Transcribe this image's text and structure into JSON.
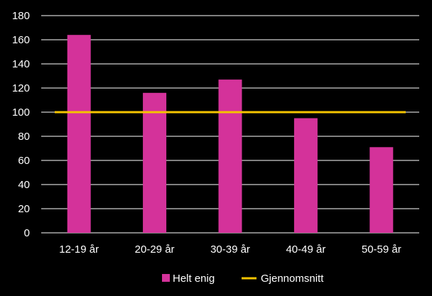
{
  "chart_data": {
    "type": "bar",
    "categories": [
      "12-19 år",
      "20-29 år",
      "30-39 år",
      "40-49 år",
      "50-59 år"
    ],
    "series": [
      {
        "name": "Helt enig",
        "type": "bar",
        "values": [
          164,
          116,
          127,
          95,
          71
        ],
        "color": "#d4329a"
      },
      {
        "name": "Gjennomsnitt",
        "type": "line",
        "values": [
          100,
          100,
          100,
          100,
          100
        ],
        "color": "#f5c400"
      }
    ],
    "ylim": [
      0,
      180
    ],
    "yticks": [
      0,
      20,
      40,
      60,
      80,
      100,
      120,
      140,
      160,
      180
    ],
    "grid": true,
    "legend": "bottom-center",
    "colors": {
      "background": "#000000",
      "grid": "#ffffff",
      "text": "#ffffff"
    }
  }
}
